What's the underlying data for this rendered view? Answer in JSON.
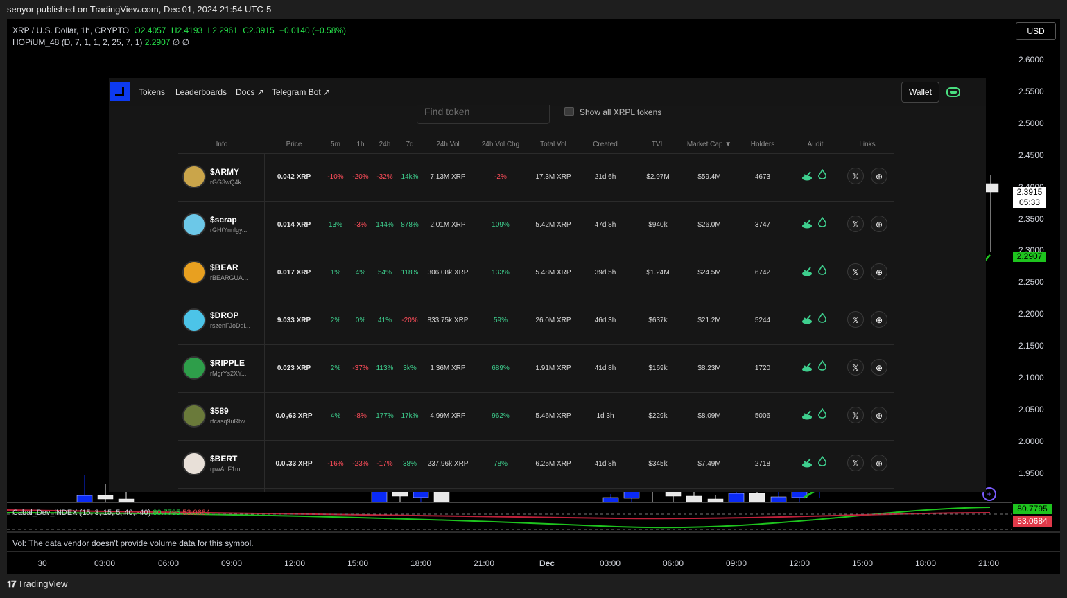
{
  "header": {
    "published": "senyor published on TradingView.com, Dec 01, 2024 21:54 UTC-5"
  },
  "legend": {
    "symbol": "XRP / U.S. Dollar, 1h, CRYPTO",
    "open": "O2.4057",
    "high": "H2.4193",
    "low": "L2.2961",
    "close": "C2.3915",
    "change": "−0.0140 (−0.58%)",
    "indicator": "HOPiUM_48 (D, 7, 1, 1, 2, 25, 7, 1)",
    "indicator_value": "2.2907",
    "indicator_empty1": "∅",
    "indicator_empty2": "∅"
  },
  "currency": "USD",
  "y_axis": [
    "2.6000",
    "2.5500",
    "2.5000",
    "2.4500",
    "2.4000",
    "2.3500",
    "2.3000",
    "2.2500",
    "2.2000",
    "2.1500",
    "2.1000",
    "2.0500",
    "2.0000",
    "1.9500"
  ],
  "price_tag": {
    "price": "2.3915",
    "countdown": "05:33",
    "hopium": "2.2907"
  },
  "x_axis": [
    {
      "label": "30",
      "bold": false
    },
    {
      "label": "03:00",
      "bold": false
    },
    {
      "label": "06:00",
      "bold": false
    },
    {
      "label": "09:00",
      "bold": false
    },
    {
      "label": "12:00",
      "bold": false
    },
    {
      "label": "15:00",
      "bold": false
    },
    {
      "label": "18:00",
      "bold": false
    },
    {
      "label": "21:00",
      "bold": false
    },
    {
      "label": "Dec",
      "bold": true
    },
    {
      "label": "03:00",
      "bold": false
    },
    {
      "label": "06:00",
      "bold": false
    },
    {
      "label": "09:00",
      "bold": false
    },
    {
      "label": "12:00",
      "bold": false
    },
    {
      "label": "15:00",
      "bold": false
    },
    {
      "label": "18:00",
      "bold": false
    },
    {
      "label": "21:00",
      "bold": false
    }
  ],
  "sub_indicator": {
    "name": "Cabal_Dev_iNDEX (15, 3, 15, 5, 40, -40)",
    "v1": "80.7795",
    "v2": "53.0684"
  },
  "volume_note": "Vol: The data vendor doesn't provide volume data for this symbol.",
  "footer": "TradingView",
  "overlay": {
    "nav": [
      "Tokens",
      "Leaderboards",
      "Docs ↗",
      "Telegram Bot ↗"
    ],
    "wallet": "Wallet",
    "search_placeholder": "Find token",
    "show_all": "Show all XRPL tokens",
    "columns": [
      "Info",
      "Price",
      "5m",
      "1h",
      "24h",
      "7d",
      "24h Vol",
      "24h Vol Chg",
      "Total Vol",
      "Created",
      "TVL",
      "Market Cap ▼",
      "Holders",
      "Audit",
      "Links"
    ],
    "rows": [
      {
        "sym": "$ARMY",
        "addr": "rGG3wQ4k...",
        "price": "0.042 XRP",
        "m5": "-10%",
        "h1": "-20%",
        "h24": "-32%",
        "d7": "14k%",
        "vol": "7.13M XRP",
        "volchg": "-2%",
        "total": "17.3M XRP",
        "created": "21d 6h",
        "tvl": "$2.97M",
        "mcap": "$59.4M",
        "holders": "4673",
        "avatar": "#caa54a"
      },
      {
        "sym": "$scrap",
        "addr": "rGHtYnnlgy...",
        "price": "0.014 XRP",
        "m5": "13%",
        "h1": "-3%",
        "h24": "144%",
        "d7": "878%",
        "vol": "2.01M XRP",
        "volchg": "109%",
        "total": "5.42M XRP",
        "created": "47d 8h",
        "tvl": "$940k",
        "mcap": "$26.0M",
        "holders": "3747",
        "avatar": "#6cc8e8"
      },
      {
        "sym": "$BEAR",
        "addr": "rBEARGUA...",
        "price": "0.017 XRP",
        "m5": "1%",
        "h1": "4%",
        "h24": "54%",
        "d7": "118%",
        "vol": "306.08k XRP",
        "volchg": "133%",
        "total": "5.48M XRP",
        "created": "39d 5h",
        "tvl": "$1.24M",
        "mcap": "$24.5M",
        "holders": "6742",
        "avatar": "#e8a020"
      },
      {
        "sym": "$DROP",
        "addr": "rszenFJoDdi...",
        "price": "9.033 XRP",
        "m5": "2%",
        "h1": "0%",
        "h24": "41%",
        "d7": "-20%",
        "vol": "833.75k XRP",
        "volchg": "59%",
        "total": "26.0M XRP",
        "created": "46d 3h",
        "tvl": "$637k",
        "mcap": "$21.2M",
        "holders": "5244",
        "avatar": "#4cc4e8"
      },
      {
        "sym": "$RIPPLE",
        "addr": "rMgrYs2XY...",
        "price": "0.023 XRP",
        "m5": "2%",
        "h1": "-37%",
        "h24": "113%",
        "d7": "3k%",
        "vol": "1.36M XRP",
        "volchg": "689%",
        "total": "1.91M XRP",
        "created": "41d 8h",
        "tvl": "$169k",
        "mcap": "$8.23M",
        "holders": "1720",
        "avatar": "#2e9e4a"
      },
      {
        "sym": "$589",
        "addr": "rfcasq9uRbv...",
        "price": "0.0₃63 XRP",
        "m5": "4%",
        "h1": "-8%",
        "h24": "177%",
        "d7": "17k%",
        "vol": "4.99M XRP",
        "volchg": "962%",
        "total": "5.46M XRP",
        "created": "1d 3h",
        "tvl": "$229k",
        "mcap": "$8.09M",
        "holders": "5006",
        "avatar": "#6a7a3a"
      },
      {
        "sym": "$BERT",
        "addr": "rpwAnF1m...",
        "price": "0.0₃33 XRP",
        "m5": "-16%",
        "h1": "-23%",
        "h24": "-17%",
        "d7": "38%",
        "vol": "237.96k XRP",
        "volchg": "78%",
        "total": "6.25M XRP",
        "created": "41d 8h",
        "tvl": "$345k",
        "mcap": "$7.49M",
        "holders": "2718",
        "avatar": "#e8e0d8"
      }
    ]
  },
  "colors": {
    "up": "#0a2af5",
    "down": "#e8e8e8",
    "hopium": "#1ec41e",
    "pos": "#3ecf8e",
    "neg": "#ff4d5a"
  }
}
